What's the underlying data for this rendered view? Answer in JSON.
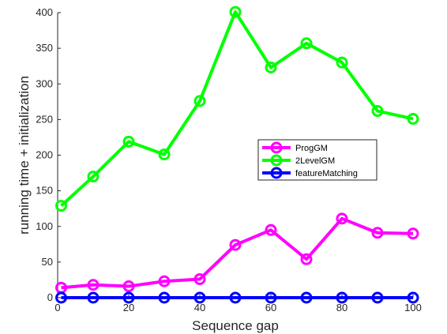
{
  "chart_data": {
    "type": "line",
    "xlabel": "Sequence gap",
    "ylabel": "running time + initialization",
    "xlim": [
      0,
      100
    ],
    "ylim": [
      0,
      400
    ],
    "xticks": [
      0,
      20,
      40,
      60,
      80,
      100
    ],
    "yticks": [
      0,
      50,
      100,
      150,
      200,
      250,
      300,
      350,
      400
    ],
    "x": [
      1,
      10,
      20,
      30,
      40,
      50,
      60,
      70,
      80,
      90,
      100
    ],
    "legend_position": "right-center",
    "series": [
      {
        "name": "ProgGM",
        "color": "#ff00ff",
        "marker": "circle",
        "values": [
          14,
          18,
          16,
          23,
          26,
          74,
          95,
          54,
          111,
          91,
          90
        ]
      },
      {
        "name": "2LevelGM",
        "color": "#00ff00",
        "marker": "circle",
        "values": [
          129,
          170,
          219,
          201,
          276,
          401,
          323,
          357,
          330,
          262,
          251
        ]
      },
      {
        "name": "featureMatching",
        "color": "#0000ff",
        "marker": "circle",
        "values": [
          0,
          0,
          0,
          0,
          0,
          0,
          0,
          0,
          0,
          0,
          0
        ]
      }
    ]
  }
}
